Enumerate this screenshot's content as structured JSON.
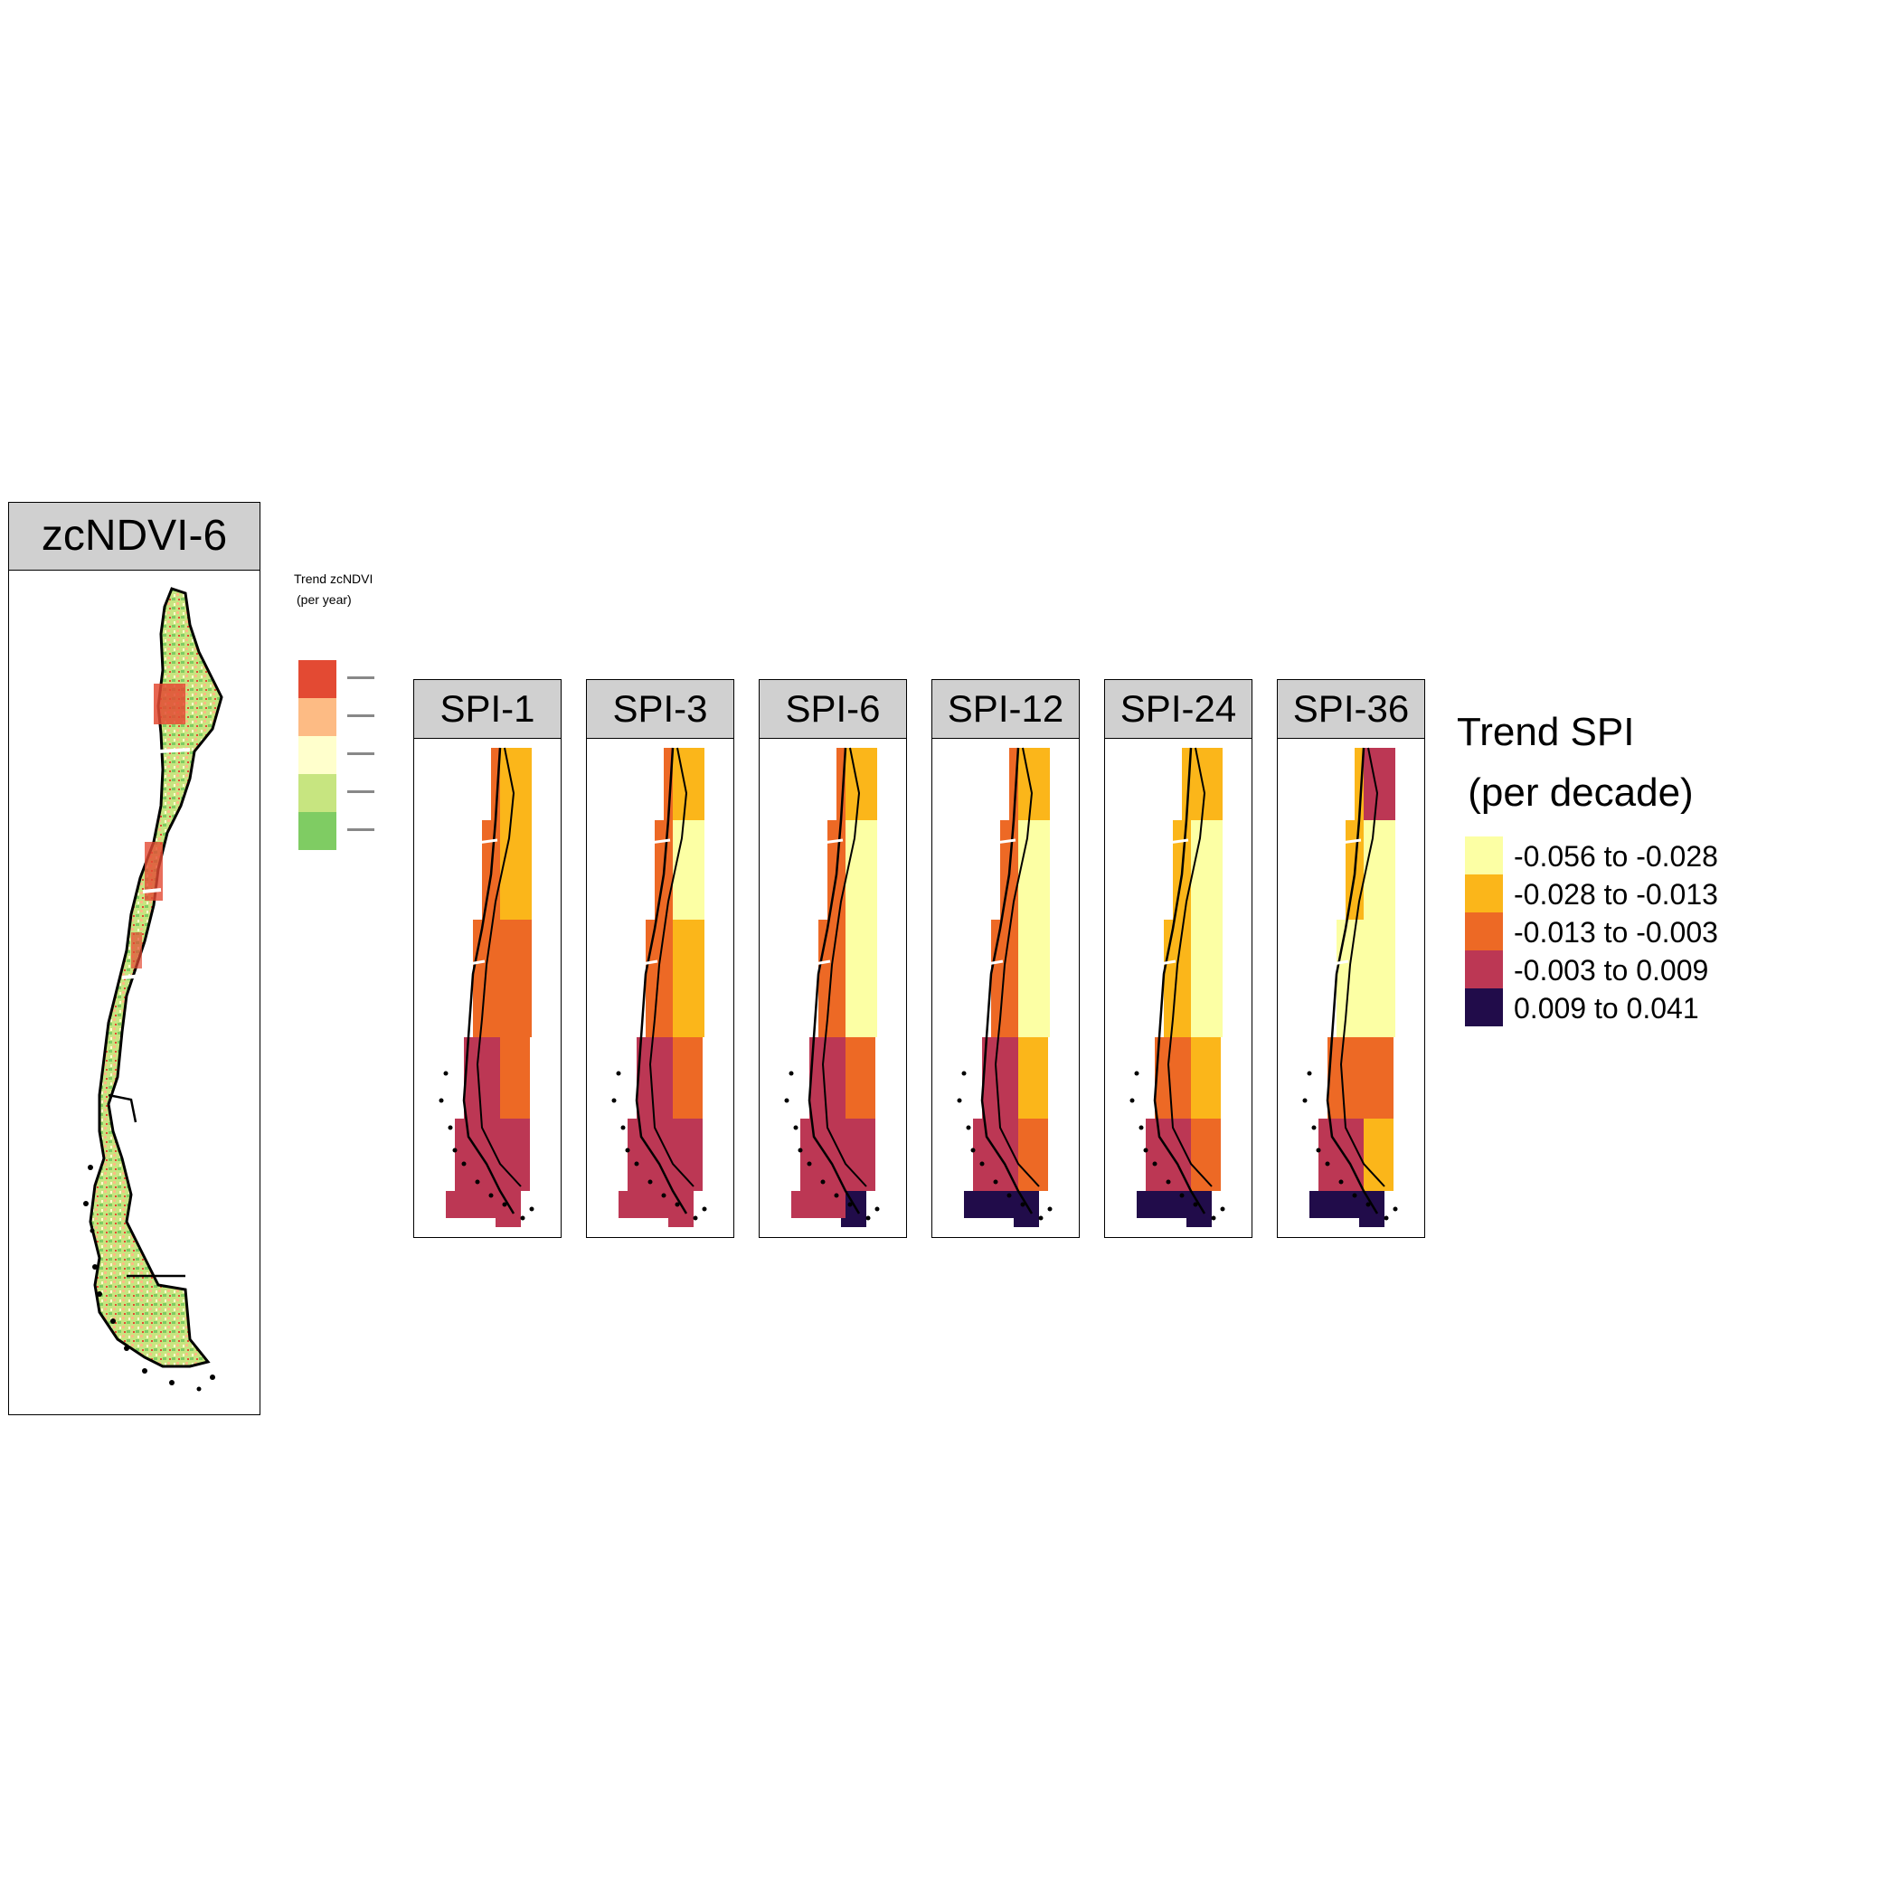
{
  "ndvi_panel": {
    "title": "zcNDVI-6",
    "legend": {
      "title_line1": "Trend zcNDVI",
      "title_line2": "(per year)",
      "colors": [
        "#e34a33",
        "#fdbb84",
        "#ffffcc",
        "#c7e580",
        "#7fcc63"
      ]
    }
  },
  "spi_panels": [
    {
      "title": "SPI-1",
      "index": 1
    },
    {
      "title": "SPI-3",
      "index": 3
    },
    {
      "title": "SPI-6",
      "index": 6
    },
    {
      "title": "SPI-12",
      "index": 12
    },
    {
      "title": "SPI-24",
      "index": 24
    },
    {
      "title": "SPI-36",
      "index": 36
    }
  ],
  "spi_legend": {
    "title_line1": "Trend SPI",
    "title_line2": " (per decade)",
    "classes": [
      {
        "label": "-0.056 to -0.028",
        "color": "#fcffa4"
      },
      {
        "label": "-0.028 to -0.013",
        "color": "#fbb61a"
      },
      {
        "label": "-0.013 to -0.003",
        "color": "#ed6925"
      },
      {
        "label": "-0.003 to 0.009",
        "color": "#bc3754"
      },
      {
        "label": "0.009 to 0.041",
        "color": "#210c4a"
      }
    ]
  }
}
